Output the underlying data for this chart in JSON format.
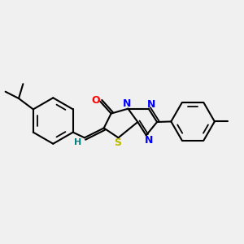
{
  "background_color": "#f0f0f0",
  "bond_color": "#000000",
  "atom_colors": {
    "N": "#0000ff",
    "O": "#ff0000",
    "S": "#b8b800",
    "H_vinyl": "#008080",
    "C": "#000000"
  },
  "figsize": [
    3.0,
    3.0
  ],
  "dpi": 100,
  "xlim": [
    0,
    10
  ],
  "ylim": [
    0,
    10
  ]
}
